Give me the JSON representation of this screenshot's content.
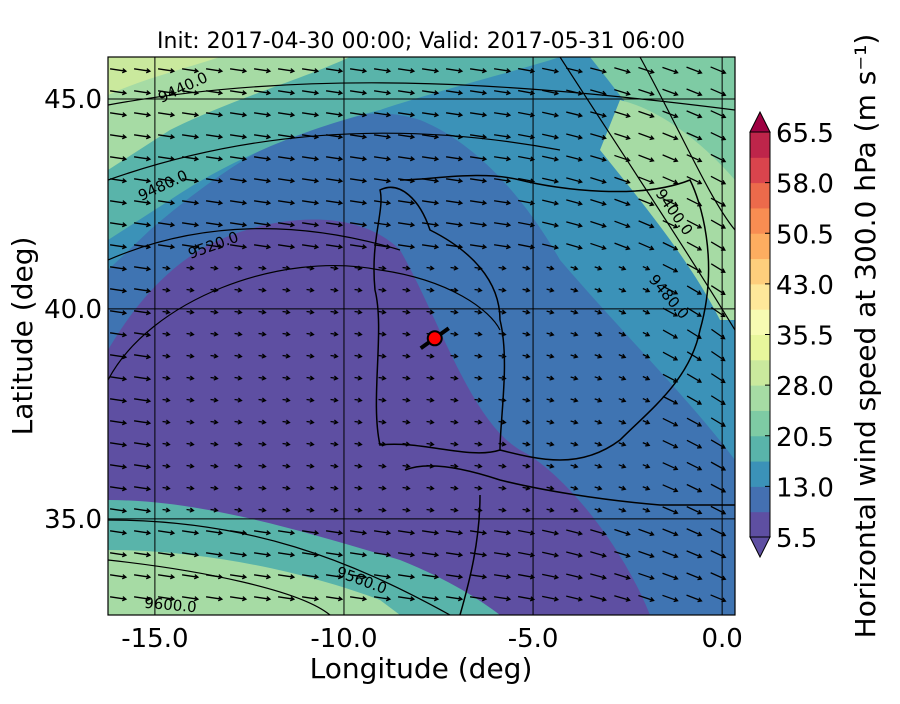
{
  "chart_data": {
    "type": "map",
    "title": "Init: 2017-04-30 00:00; Valid: 2017-05-31 06:00",
    "xlabel": "Longitude (deg)",
    "ylabel": "Latitude (deg)",
    "xlim": [
      -16.24,
      0.34
    ],
    "ylim": [
      32.71,
      46.0
    ],
    "xticks": [
      {
        "value": -15,
        "label": "-15.0"
      },
      {
        "value": -10,
        "label": "-10.0"
      },
      {
        "value": -5,
        "label": "-5.0"
      },
      {
        "value": 0,
        "label": "0.0"
      }
    ],
    "yticks": [
      {
        "value": 35,
        "label": "35.0"
      },
      {
        "value": 40,
        "label": "40.0"
      },
      {
        "value": 45,
        "label": "45.0"
      }
    ],
    "point": {
      "x": -7.6,
      "y": 39.3,
      "color": "#ff0000"
    },
    "contour_labels": [
      "9440.0",
      "9480.0",
      "9520.0",
      "9560.0",
      "9600.0",
      "9400.0",
      "9480.0"
    ],
    "colorbar": {
      "label": "Horizontal wind speed at 300.0 hPa (m s⁻¹)",
      "lim": [
        5.5,
        65.5
      ],
      "ticks": [
        5.5,
        {
          "value": 13,
          "label": "13.0"
        },
        20.5,
        {
          "value": 28,
          "label": "28.0"
        },
        35.5,
        {
          "value": 43,
          "label": "43.0"
        },
        50.5,
        {
          "value": 58,
          "label": "58.0"
        },
        65.5
      ],
      "colors": [
        "#5e4fa2",
        "#4470b1",
        "#3b92b8",
        "#59b4aa",
        "#7ecba4",
        "#a6dba4",
        "#cae99d",
        "#e8f69c",
        "#f7fbb2",
        "#fee89a",
        "#fece7c",
        "#fdad60",
        "#f88d52",
        "#ec6a4b",
        "#d9444d",
        "#be254a"
      ],
      "over_color": "#9e0142",
      "under_color": "#5e4fa2"
    }
  }
}
